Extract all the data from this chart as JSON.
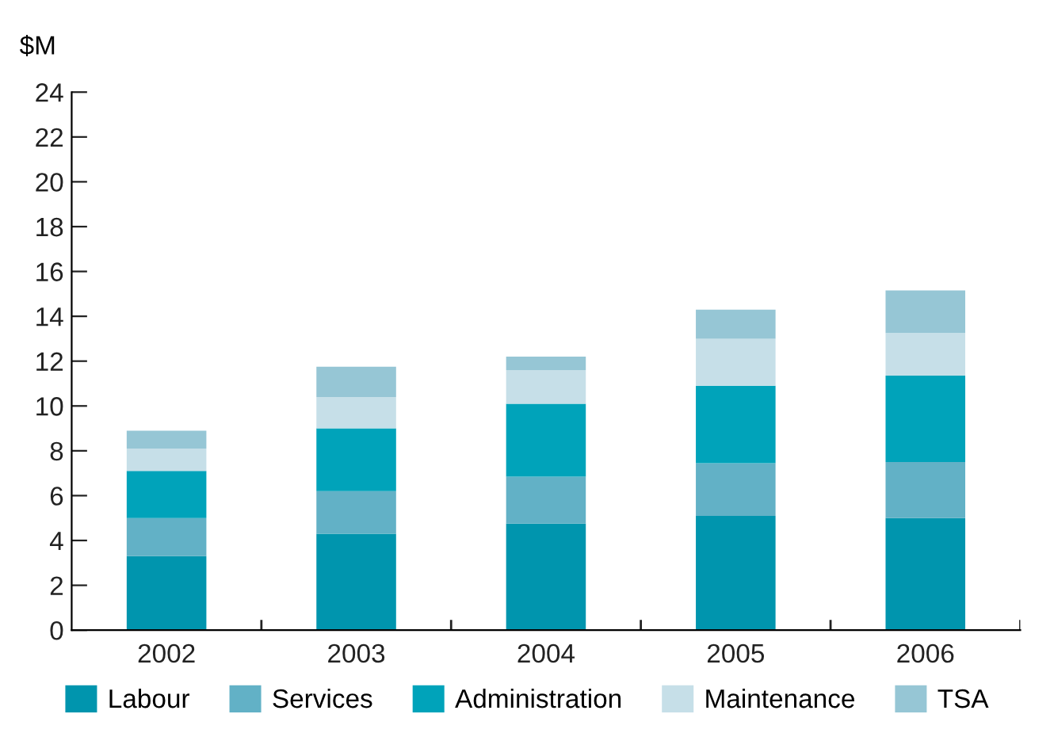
{
  "chart_data": {
    "type": "bar",
    "stacked": true,
    "ylabel": "$M",
    "categories": [
      "2002",
      "2003",
      "2004",
      "2005",
      "2006"
    ],
    "series": [
      {
        "name": "Labour",
        "color": "#0095ae",
        "values": [
          3.3,
          4.3,
          4.75,
          5.1,
          5.0
        ]
      },
      {
        "name": "Services",
        "color": "#62b1c6",
        "values": [
          1.7,
          1.9,
          2.1,
          2.35,
          2.5
        ]
      },
      {
        "name": "Administration",
        "color": "#00a3ba",
        "values": [
          2.1,
          2.8,
          3.25,
          3.45,
          3.85
        ]
      },
      {
        "name": "Maintenance",
        "color": "#c6dfe8",
        "values": [
          1.0,
          1.4,
          1.5,
          2.1,
          1.9
        ]
      },
      {
        "name": "TSA",
        "color": "#96c6d5",
        "values": [
          0.8,
          1.35,
          0.6,
          1.3,
          1.9
        ]
      }
    ],
    "ylim": [
      0,
      24
    ],
    "yticks": [
      0,
      2,
      4,
      6,
      8,
      10,
      12,
      14,
      16,
      18,
      20,
      22,
      24
    ],
    "grid": false,
    "legend": "bottom"
  }
}
